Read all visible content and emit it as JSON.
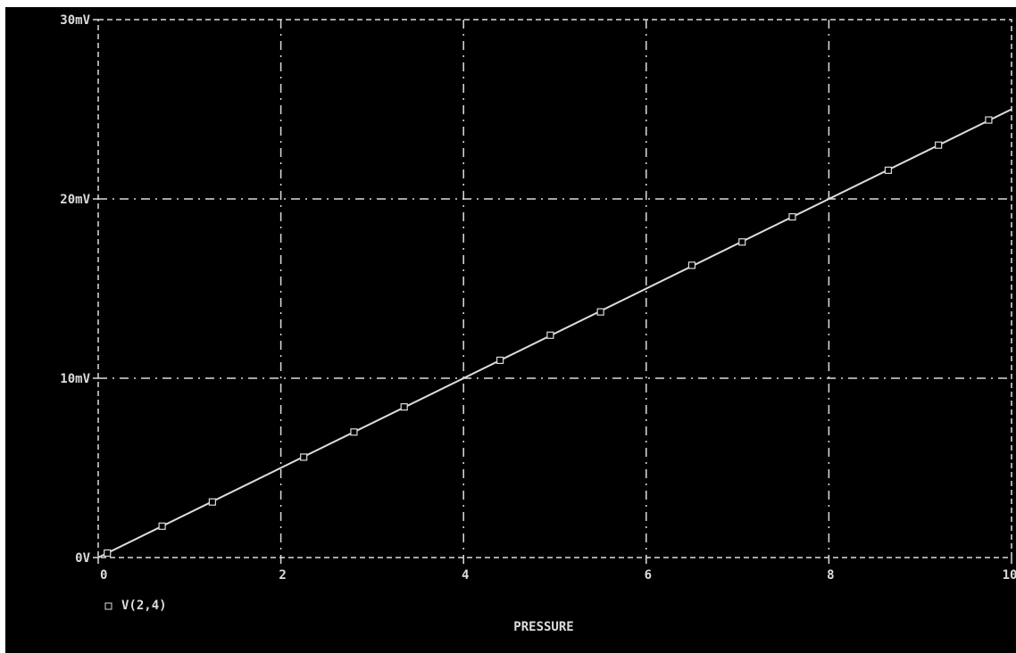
{
  "chart_data": {
    "type": "line",
    "title": "",
    "xlabel": "PRESSURE",
    "ylabel": "",
    "xlim": [
      0,
      10
    ],
    "ylim": [
      0,
      0.03
    ],
    "x_ticks": [
      {
        "value": 0,
        "label": "0"
      },
      {
        "value": 2,
        "label": "2"
      },
      {
        "value": 4,
        "label": "4"
      },
      {
        "value": 6,
        "label": "6"
      },
      {
        "value": 8,
        "label": "8"
      },
      {
        "value": 10,
        "label": "10"
      }
    ],
    "y_ticks": [
      {
        "value": 0,
        "label": "0V"
      },
      {
        "value": 0.01,
        "label": "10mV"
      },
      {
        "value": 0.02,
        "label": "20mV"
      },
      {
        "value": 0.03,
        "label": "30mV"
      }
    ],
    "grid": true,
    "legend_position": "bottom-left",
    "series": [
      {
        "name": "V(2,4)",
        "marker": "square",
        "x": [
          0.1,
          0.7,
          1.25,
          2.25,
          2.8,
          3.35,
          4.4,
          4.95,
          5.5,
          6.5,
          7.05,
          7.6,
          8.65,
          9.2,
          9.75
        ],
        "y": [
          0.00025,
          0.00175,
          0.0031,
          0.0056,
          0.007,
          0.0084,
          0.011,
          0.0124,
          0.0137,
          0.0163,
          0.0176,
          0.019,
          0.0216,
          0.023,
          0.0244
        ]
      }
    ],
    "line_endpoints": {
      "x": [
        0,
        10
      ],
      "y": [
        0,
        0.025
      ]
    }
  },
  "colors": {
    "background": "#000000",
    "axis": "#dcdcdc",
    "grid": "#dcdcdc",
    "trace": "#dcdcdc"
  }
}
